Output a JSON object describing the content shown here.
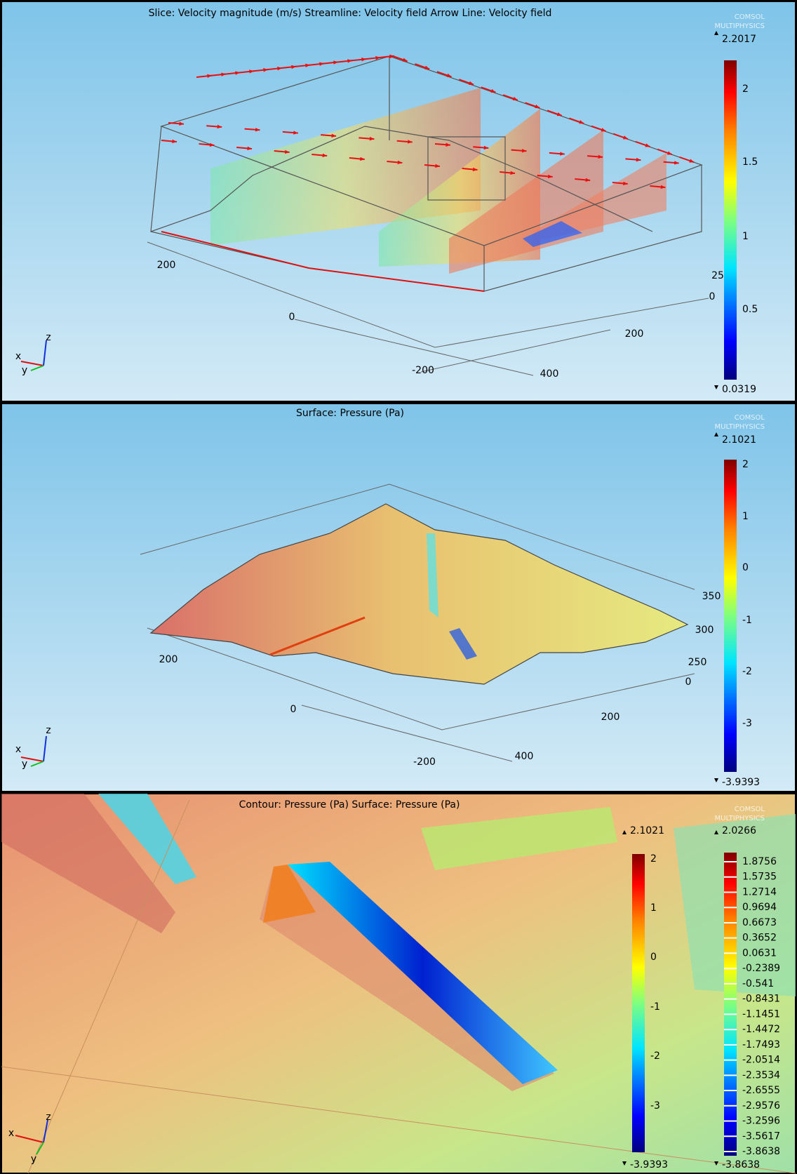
{
  "panels": [
    {
      "title": "Slice: Velocity magnitude (m/s)  Streamline: Velocity field  Arrow Line: Velocity field",
      "logo": [
        "COMSOL",
        "MULTIPHYSICS"
      ],
      "axis_labels": [
        "200",
        "0",
        "-200",
        "200",
        "400",
        "0",
        "25"
      ],
      "triad": [
        "x",
        "y",
        "z"
      ],
      "colorbars": [
        {
          "max": "2.2017",
          "min": "0.0319",
          "ticks": [
            "2",
            "1.5",
            "1",
            "0.5"
          ]
        }
      ]
    },
    {
      "title": "Surface: Pressure (Pa)",
      "logo": [
        "COMSOL",
        "MULTIPHYSICS"
      ],
      "axis_labels": [
        "200",
        "0",
        "-200",
        "200",
        "400",
        "0",
        "250",
        "300",
        "350"
      ],
      "triad": [
        "x",
        "y",
        "z"
      ],
      "colorbars": [
        {
          "max": "2.1021",
          "min": "-3.9393",
          "ticks": [
            "2",
            "1",
            "0",
            "-1",
            "-2",
            "-3"
          ]
        }
      ]
    },
    {
      "title": "Contour: Pressure (Pa)  Surface: Pressure (Pa)",
      "logo": [
        "COMSOL",
        "MULTIPHYSICS"
      ],
      "triad": [
        "x",
        "y",
        "z"
      ],
      "colorbars": [
        {
          "max": "2.1021",
          "min": "-3.9393",
          "ticks": [
            "2",
            "1",
            "0",
            "-1",
            "-2",
            "-3"
          ]
        },
        {
          "max": "2.0266",
          "min": "-3.8638",
          "ticks": [
            "1.8756",
            "1.5735",
            "1.2714",
            "0.9694",
            "0.6673",
            "0.3652",
            "0.0631",
            "-0.2389",
            "-0.541",
            "-0.8431",
            "-1.1451",
            "-1.4472",
            "-1.7493",
            "-2.0514",
            "-2.3534",
            "-2.6555",
            "-2.9576",
            "-3.2596",
            "-3.5617",
            "-3.8638"
          ]
        }
      ]
    }
  ]
}
